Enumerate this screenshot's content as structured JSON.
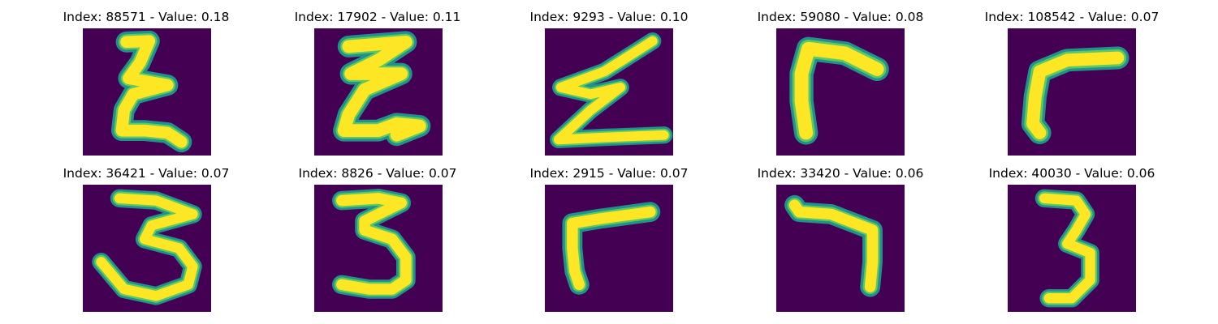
{
  "figure": {
    "colors": {
      "background": "#440154",
      "stroke_edge": "#21918c",
      "stroke_mid": "#5ec962",
      "stroke_core": "#fde725"
    },
    "panels": [
      {
        "title": "Index: 88571 - Value: 0.18",
        "index": 88571,
        "value": 0.18,
        "glyph": "epsilon"
      },
      {
        "title": "Index: 17902 - Value: 0.11",
        "index": 17902,
        "value": 0.11,
        "glyph": "epsilon-wide"
      },
      {
        "title": "Index: 9293 - Value: 0.10",
        "index": 9293,
        "value": 0.1,
        "glyph": "z-shape"
      },
      {
        "title": "Index: 59080 - Value: 0.08",
        "index": 59080,
        "value": 0.08,
        "glyph": "corner-bold"
      },
      {
        "title": "Index: 108542 - Value: 0.07",
        "index": 108542,
        "value": 0.07,
        "glyph": "corner-curve"
      },
      {
        "title": "Index: 36421 - Value: 0.07",
        "index": 36421,
        "value": 0.07,
        "glyph": "three"
      },
      {
        "title": "Index: 8826 - Value: 0.07",
        "index": 8826,
        "value": 0.07,
        "glyph": "three"
      },
      {
        "title": "Index: 2915 - Value: 0.07",
        "index": 2915,
        "value": 0.07,
        "glyph": "corner"
      },
      {
        "title": "Index: 33420 - Value: 0.06",
        "index": 33420,
        "value": 0.06,
        "glyph": "seven"
      },
      {
        "title": "Index: 40030 - Value: 0.06",
        "index": 40030,
        "value": 0.06,
        "glyph": "three-narrow"
      }
    ]
  }
}
